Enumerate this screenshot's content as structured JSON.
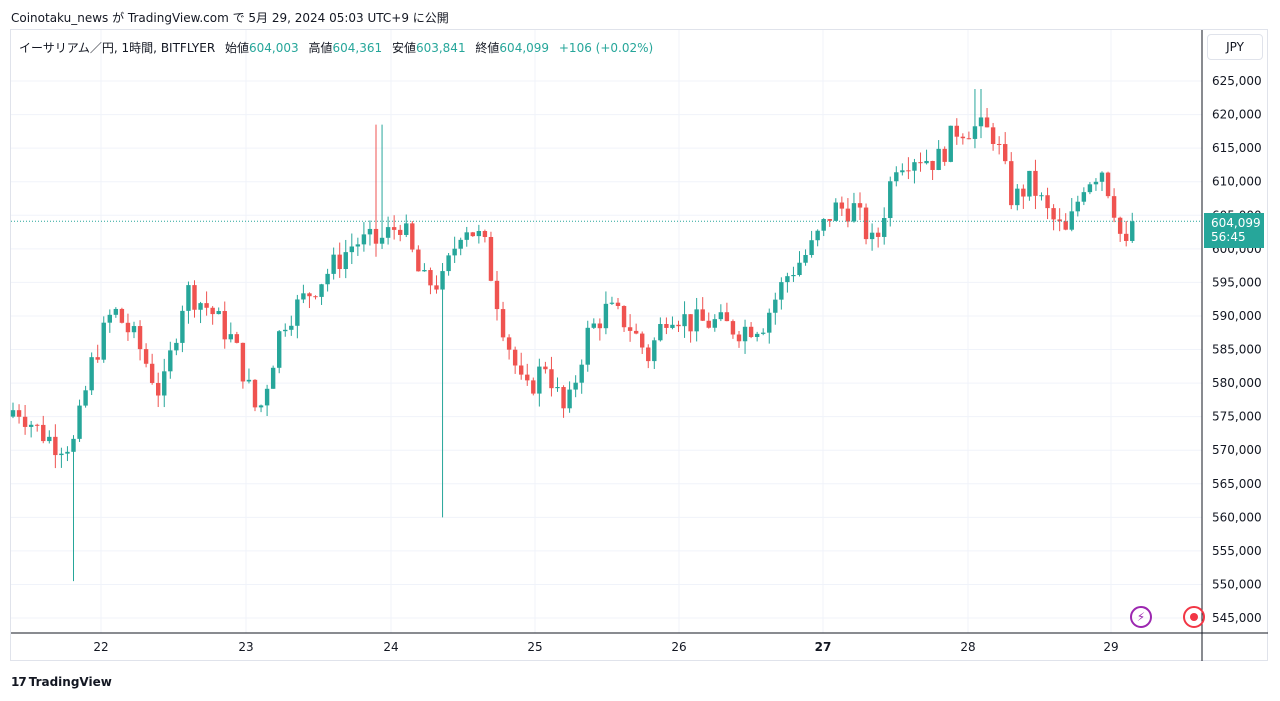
{
  "caption": "Coinotaku_news が TradingView.com で 5月 29, 2024 05:03 UTC+9 に公開",
  "legend": {
    "symbol": "イーサリアム／円, 1時間, BITFLYER",
    "open_label": "始値",
    "open": "604,003",
    "high_label": "高値",
    "high": "604,361",
    "low_label": "安値",
    "low": "603,841",
    "close_label": "終値",
    "close": "604,099",
    "change": "+106 (+0.02%)"
  },
  "currency": "JPY",
  "last_price": {
    "value": "604,099",
    "countdown": "56:45"
  },
  "branding": "TradingView",
  "icons": {
    "bolt": "lightning-icon",
    "record": "record-icon",
    "logo": "tradingview-logo-icon"
  },
  "colors": {
    "up": "#26a69a",
    "down": "#ef5350",
    "grid": "#f0f3fa"
  },
  "chart_data": {
    "type": "candlestick",
    "ylim": [
      542000,
      628000
    ],
    "y_ticks": [
      625000,
      620000,
      615000,
      610000,
      605000,
      600000,
      595000,
      590000,
      585000,
      580000,
      575000,
      570000,
      565000,
      560000,
      555000,
      550000,
      545000
    ],
    "y_tick_labels": [
      "625,000",
      "620,000",
      "615,000",
      "610,000",
      "605,000",
      "600,000",
      "595,000",
      "590,000",
      "585,000",
      "580,000",
      "575,000",
      "570,000",
      "565,000",
      "560,000",
      "555,000",
      "550,000",
      "545,000"
    ],
    "x_tick_labels": [
      "22",
      "23",
      "24",
      "25",
      "26",
      "27",
      "28",
      "29"
    ],
    "grid": true,
    "series": [
      {
        "key_points": [
          {
            "date": "May 21",
            "close": 576000
          },
          {
            "date": "May 21",
            "close": 573000
          },
          {
            "date": "May 21",
            "close": 571000
          },
          {
            "date": "May 21",
            "low": 550500
          },
          {
            "date": "May 21",
            "close": 583000
          },
          {
            "date": "May 22",
            "close": 591000
          },
          {
            "date": "May 22",
            "close": 586000
          },
          {
            "date": "May 22",
            "close": 578000
          },
          {
            "date": "May 22",
            "close": 594000
          },
          {
            "date": "May 22",
            "close": 591000
          },
          {
            "date": "May 22",
            "close": 586000
          },
          {
            "date": "May 23",
            "close": 575000
          },
          {
            "date": "May 23",
            "close": 589000
          },
          {
            "date": "May 23",
            "close": 593000
          },
          {
            "date": "May 23",
            "close": 597000
          },
          {
            "date": "May 23",
            "close": 601000
          },
          {
            "date": "May 23",
            "high": 618500
          },
          {
            "date": "May 24",
            "close": 604000
          },
          {
            "date": "May 24",
            "close": 595000
          },
          {
            "date": "May 24",
            "low": 560000
          },
          {
            "date": "May 24",
            "close": 604000
          },
          {
            "date": "May 24",
            "close": 601000
          },
          {
            "date": "May 24",
            "close": 588000
          },
          {
            "date": "May 24",
            "close": 578000
          },
          {
            "date": "May 25",
            "close": 583000
          },
          {
            "date": "May 25",
            "close": 575000
          },
          {
            "date": "May 25",
            "close": 587000
          },
          {
            "date": "May 25",
            "close": 591000
          },
          {
            "date": "May 25",
            "close": 589000
          },
          {
            "date": "May 25",
            "close": 584000
          },
          {
            "date": "May 25",
            "close": 591000
          },
          {
            "date": "May 26",
            "close": 589000
          },
          {
            "date": "May 26",
            "close": 589000
          },
          {
            "date": "May 26",
            "close": 588000
          },
          {
            "date": "May 26",
            "close": 589000
          },
          {
            "date": "May 26",
            "close": 596000
          },
          {
            "date": "May 26",
            "close": 600000
          },
          {
            "date": "May 27",
            "close": 606000
          },
          {
            "date": "May 27",
            "close": 606000
          },
          {
            "date": "May 27",
            "close": 600000
          },
          {
            "date": "May 27",
            "close": 613000
          },
          {
            "date": "May 27",
            "close": 614000
          },
          {
            "date": "May 27",
            "close": 613000
          },
          {
            "date": "May 27",
            "close": 618000
          },
          {
            "date": "May 28",
            "high": 623800
          },
          {
            "date": "May 28",
            "close": 617000
          },
          {
            "date": "May 28",
            "close": 607000
          },
          {
            "date": "May 28",
            "close": 610000
          },
          {
            "date": "May 28",
            "close": 605000
          },
          {
            "date": "May 28",
            "close": 602000
          },
          {
            "date": "May 28",
            "close": 610000
          },
          {
            "date": "May 28",
            "close": 612000
          },
          {
            "date": "May 29",
            "close": 606000
          },
          {
            "date": "May 29",
            "close": 601000
          },
          {
            "date": "May 29",
            "close": 599000
          },
          {
            "date": "May 29",
            "close": 604099
          }
        ]
      }
    ]
  }
}
